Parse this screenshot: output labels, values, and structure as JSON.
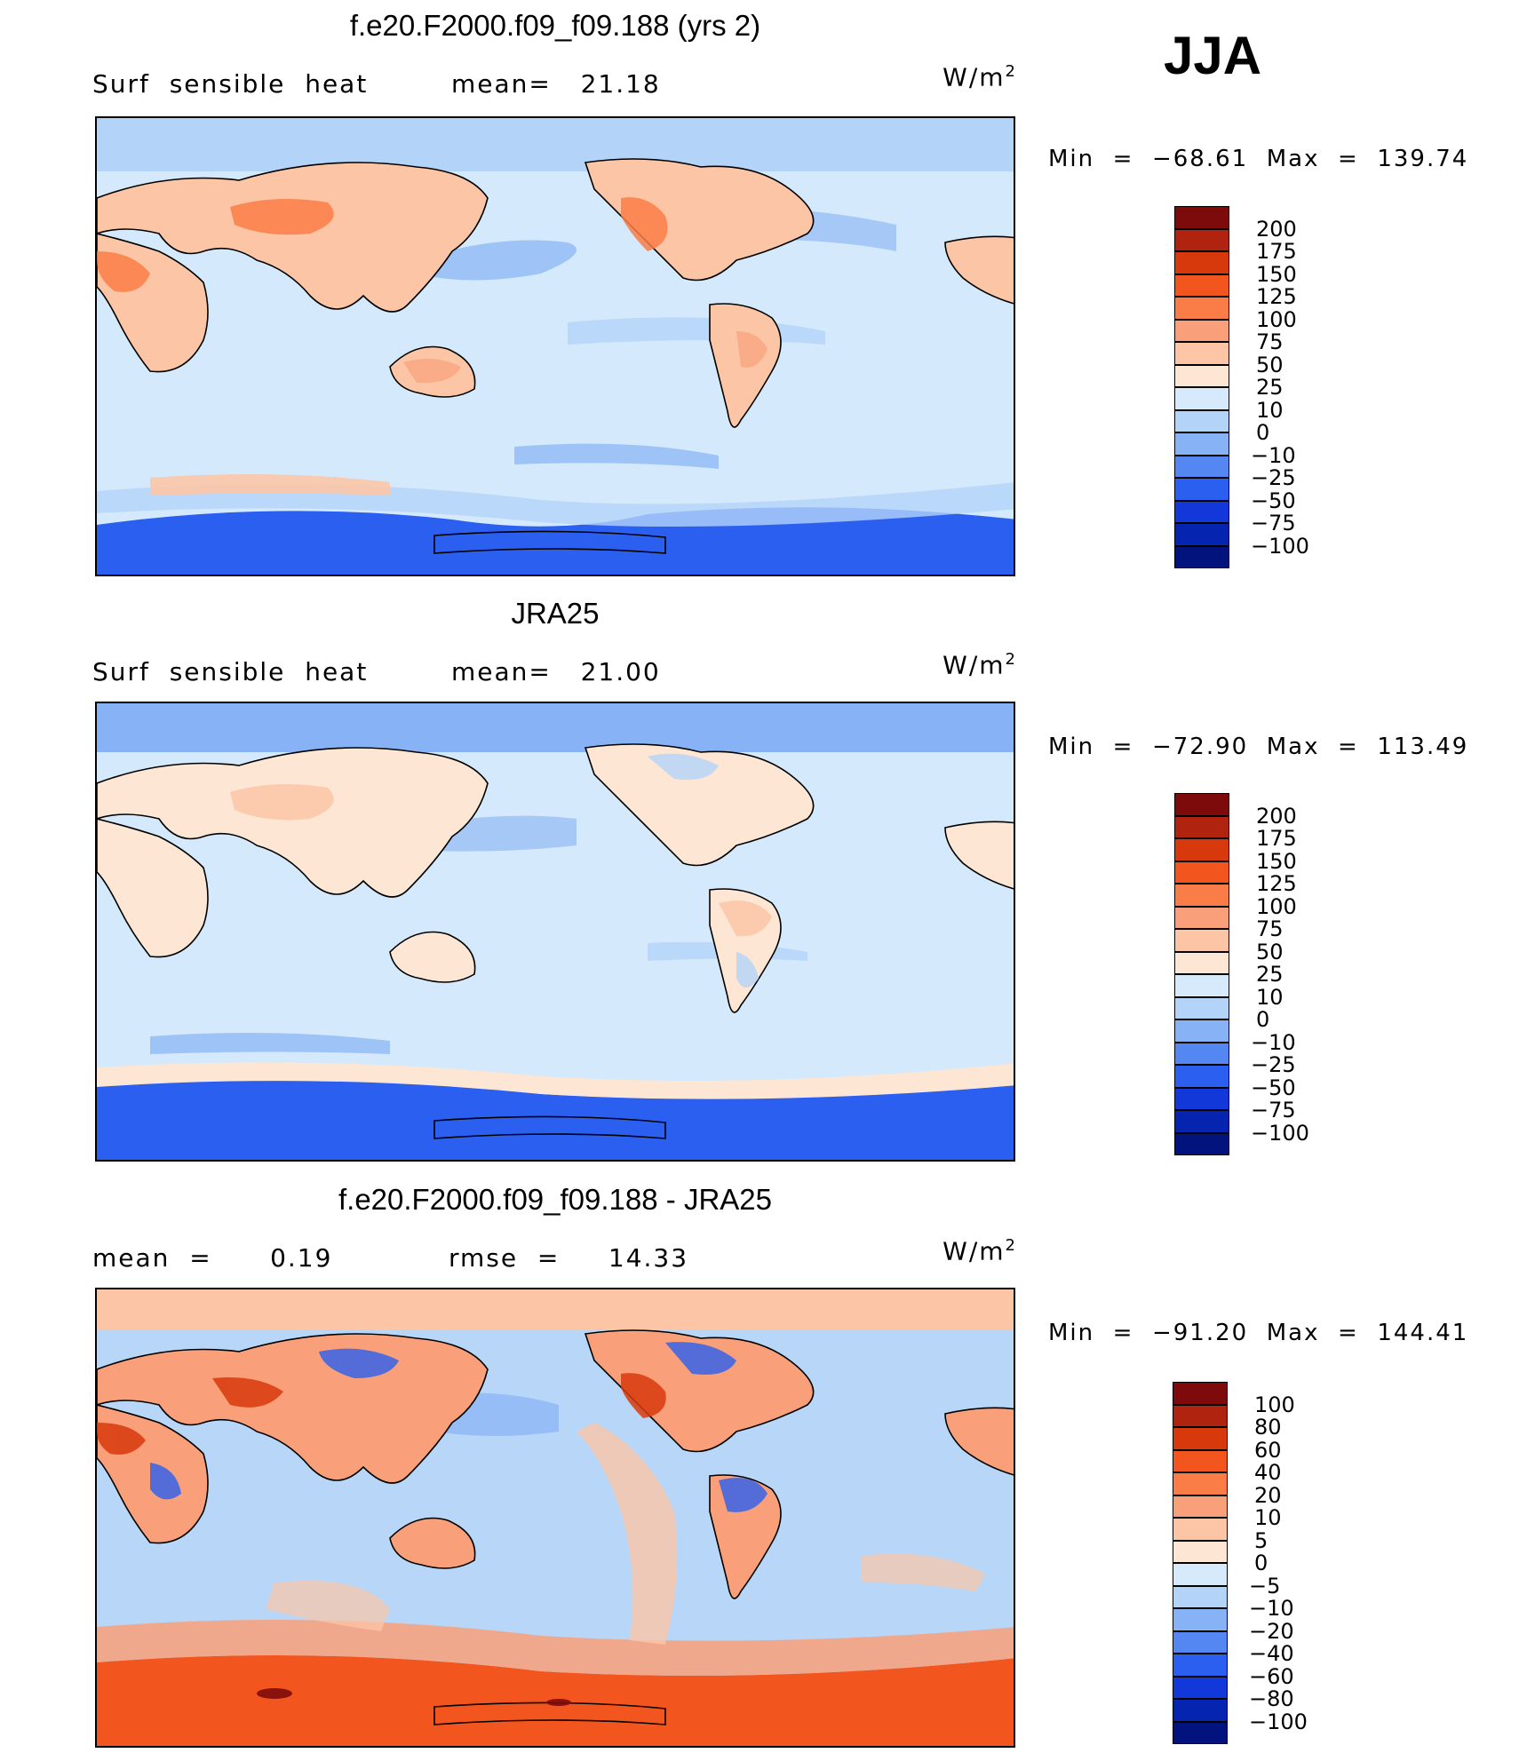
{
  "season": "JJA",
  "units_base": "W/m",
  "units_sup": "2",
  "panels": [
    {
      "id": "model",
      "title": "f.e20.F2000.f09_f09.188 (yrs 2)",
      "left_label": "Surf  sensible  heat",
      "mid_label": "mean=   21.18",
      "minmax": "Min  =  −68.61  Max  =  139.74",
      "legend_key": "abs",
      "base_color": "#d4e9fb",
      "land_color": "#fbe0cc"
    },
    {
      "id": "obs",
      "title": "JRA25",
      "left_label": "Surf  sensible  heat",
      "mid_label": "mean=   21.00",
      "minmax": "Min  =  −72.90  Max  =  113.49",
      "legend_key": "abs",
      "base_color": "#d4e9fb",
      "land_color": "#fde6d3"
    },
    {
      "id": "diff",
      "title": "f.e20.F2000.f09_f09.188 - JRA25",
      "left_label": "mean  =      0.19",
      "mid_label": "rmse  =     14.33",
      "minmax": "Min  =  −91.20  Max  =  144.41",
      "legend_key": "diff",
      "base_color": "#b8d6f7",
      "land_color": "#f5a683"
    }
  ],
  "legends": {
    "abs": {
      "labels": [
        "200",
        "175",
        "150",
        "125",
        "100",
        "75",
        "50",
        "25",
        "10",
        "0",
        "−10",
        "−25",
        "−50",
        "−75",
        "−100"
      ],
      "colors": [
        "#7d0b0b",
        "#b0240f",
        "#d8390c",
        "#f2551e",
        "#fa7c46",
        "#f9a07a",
        "#fcc6a6",
        "#fde6d3",
        "#d6eafc",
        "#b3d3f9",
        "#87b2f5",
        "#5487f1",
        "#2b5ff0",
        "#1238d9",
        "#0524b0",
        "#03137d"
      ]
    },
    "diff": {
      "labels": [
        "100",
        "80",
        "60",
        "40",
        "20",
        "10",
        "5",
        "0",
        "−5",
        "−10",
        "−20",
        "−40",
        "−60",
        "−80",
        "−100"
      ],
      "colors": [
        "#7d0b0b",
        "#b0240f",
        "#d8390c",
        "#f2551e",
        "#fa7c46",
        "#f9a07a",
        "#fcc6a6",
        "#fde6d3",
        "#d6eafc",
        "#b3d3f9",
        "#87b2f5",
        "#5487f1",
        "#2b5ff0",
        "#1238d9",
        "#0524b0",
        "#03137d"
      ]
    }
  }
}
